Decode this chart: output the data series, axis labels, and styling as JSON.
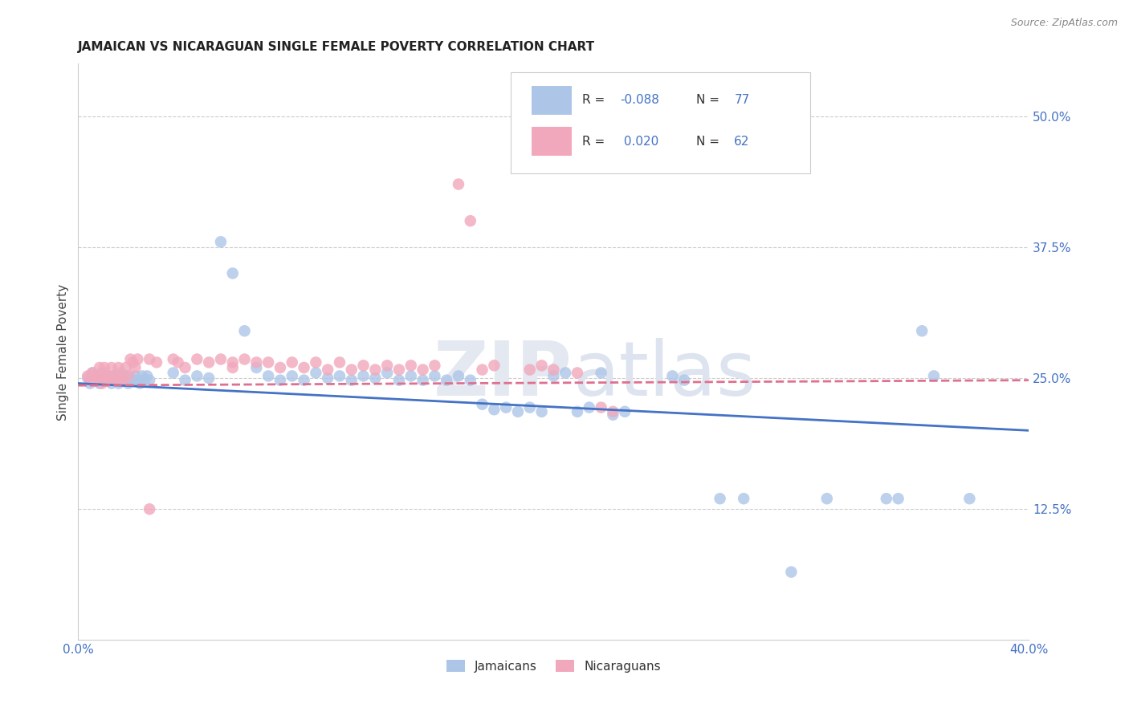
{
  "title": "JAMAICAN VS NICARAGUAN SINGLE FEMALE POVERTY CORRELATION CHART",
  "source": "Source: ZipAtlas.com",
  "ylabel": "Single Female Poverty",
  "yticks": [
    "12.5%",
    "25.0%",
    "37.5%",
    "50.0%"
  ],
  "ytick_vals": [
    0.125,
    0.25,
    0.375,
    0.5
  ],
  "xlim": [
    0.0,
    0.4
  ],
  "ylim": [
    0.0,
    0.55
  ],
  "jamaican_color": "#adc6e8",
  "nicaraguan_color": "#f2a8bc",
  "jamaican_line_color": "#4472c4",
  "nicaraguan_line_color": "#e07090",
  "background_color": "#ffffff",
  "legend_jamaican": "Jamaicans",
  "legend_nicaraguan": "Nicaraguans",
  "legend_text_color": "#4472c4",
  "legend_r_color": "#e05070",
  "jamaican_scatter": [
    [
      0.004,
      0.25
    ],
    [
      0.005,
      0.245
    ],
    [
      0.006,
      0.255
    ],
    [
      0.007,
      0.248
    ],
    [
      0.008,
      0.252
    ],
    [
      0.009,
      0.245
    ],
    [
      0.01,
      0.255
    ],
    [
      0.01,
      0.248
    ],
    [
      0.011,
      0.252
    ],
    [
      0.012,
      0.248
    ],
    [
      0.013,
      0.252
    ],
    [
      0.014,
      0.245
    ],
    [
      0.015,
      0.252
    ],
    [
      0.016,
      0.248
    ],
    [
      0.017,
      0.245
    ],
    [
      0.018,
      0.255
    ],
    [
      0.019,
      0.248
    ],
    [
      0.02,
      0.252
    ],
    [
      0.021,
      0.245
    ],
    [
      0.022,
      0.25
    ],
    [
      0.023,
      0.248
    ],
    [
      0.024,
      0.252
    ],
    [
      0.025,
      0.248
    ],
    [
      0.026,
      0.245
    ],
    [
      0.027,
      0.252
    ],
    [
      0.028,
      0.248
    ],
    [
      0.029,
      0.252
    ],
    [
      0.03,
      0.248
    ],
    [
      0.04,
      0.255
    ],
    [
      0.045,
      0.248
    ],
    [
      0.05,
      0.252
    ],
    [
      0.055,
      0.25
    ],
    [
      0.06,
      0.38
    ],
    [
      0.065,
      0.35
    ],
    [
      0.07,
      0.295
    ],
    [
      0.075,
      0.26
    ],
    [
      0.08,
      0.252
    ],
    [
      0.085,
      0.248
    ],
    [
      0.09,
      0.252
    ],
    [
      0.095,
      0.248
    ],
    [
      0.1,
      0.255
    ],
    [
      0.105,
      0.25
    ],
    [
      0.11,
      0.252
    ],
    [
      0.115,
      0.248
    ],
    [
      0.12,
      0.252
    ],
    [
      0.125,
      0.25
    ],
    [
      0.13,
      0.255
    ],
    [
      0.135,
      0.248
    ],
    [
      0.14,
      0.252
    ],
    [
      0.145,
      0.248
    ],
    [
      0.15,
      0.252
    ],
    [
      0.155,
      0.248
    ],
    [
      0.16,
      0.252
    ],
    [
      0.165,
      0.248
    ],
    [
      0.17,
      0.225
    ],
    [
      0.175,
      0.22
    ],
    [
      0.18,
      0.222
    ],
    [
      0.185,
      0.218
    ],
    [
      0.19,
      0.222
    ],
    [
      0.195,
      0.218
    ],
    [
      0.2,
      0.252
    ],
    [
      0.205,
      0.255
    ],
    [
      0.21,
      0.218
    ],
    [
      0.215,
      0.222
    ],
    [
      0.22,
      0.255
    ],
    [
      0.225,
      0.215
    ],
    [
      0.23,
      0.218
    ],
    [
      0.25,
      0.252
    ],
    [
      0.255,
      0.248
    ],
    [
      0.27,
      0.135
    ],
    [
      0.28,
      0.135
    ],
    [
      0.3,
      0.065
    ],
    [
      0.315,
      0.135
    ],
    [
      0.34,
      0.135
    ],
    [
      0.345,
      0.135
    ],
    [
      0.355,
      0.295
    ],
    [
      0.36,
      0.252
    ],
    [
      0.375,
      0.135
    ]
  ],
  "nicaraguan_scatter": [
    [
      0.004,
      0.252
    ],
    [
      0.005,
      0.248
    ],
    [
      0.006,
      0.255
    ],
    [
      0.007,
      0.252
    ],
    [
      0.008,
      0.248
    ],
    [
      0.009,
      0.26
    ],
    [
      0.01,
      0.252
    ],
    [
      0.01,
      0.245
    ],
    [
      0.011,
      0.26
    ],
    [
      0.012,
      0.252
    ],
    [
      0.013,
      0.248
    ],
    [
      0.014,
      0.26
    ],
    [
      0.015,
      0.252
    ],
    [
      0.016,
      0.248
    ],
    [
      0.017,
      0.26
    ],
    [
      0.018,
      0.252
    ],
    [
      0.019,
      0.248
    ],
    [
      0.02,
      0.26
    ],
    [
      0.021,
      0.252
    ],
    [
      0.022,
      0.268
    ],
    [
      0.023,
      0.265
    ],
    [
      0.024,
      0.26
    ],
    [
      0.025,
      0.268
    ],
    [
      0.03,
      0.268
    ],
    [
      0.033,
      0.265
    ],
    [
      0.04,
      0.268
    ],
    [
      0.042,
      0.265
    ],
    [
      0.045,
      0.26
    ],
    [
      0.05,
      0.268
    ],
    [
      0.055,
      0.265
    ],
    [
      0.06,
      0.268
    ],
    [
      0.065,
      0.265
    ],
    [
      0.065,
      0.26
    ],
    [
      0.07,
      0.268
    ],
    [
      0.075,
      0.265
    ],
    [
      0.08,
      0.265
    ],
    [
      0.085,
      0.26
    ],
    [
      0.09,
      0.265
    ],
    [
      0.095,
      0.26
    ],
    [
      0.1,
      0.265
    ],
    [
      0.105,
      0.258
    ],
    [
      0.11,
      0.265
    ],
    [
      0.115,
      0.258
    ],
    [
      0.12,
      0.262
    ],
    [
      0.125,
      0.258
    ],
    [
      0.13,
      0.262
    ],
    [
      0.135,
      0.258
    ],
    [
      0.14,
      0.262
    ],
    [
      0.145,
      0.258
    ],
    [
      0.15,
      0.262
    ],
    [
      0.16,
      0.435
    ],
    [
      0.165,
      0.4
    ],
    [
      0.17,
      0.258
    ],
    [
      0.175,
      0.262
    ],
    [
      0.19,
      0.258
    ],
    [
      0.195,
      0.262
    ],
    [
      0.2,
      0.258
    ],
    [
      0.21,
      0.255
    ],
    [
      0.22,
      0.222
    ],
    [
      0.225,
      0.218
    ],
    [
      0.03,
      0.125
    ]
  ]
}
